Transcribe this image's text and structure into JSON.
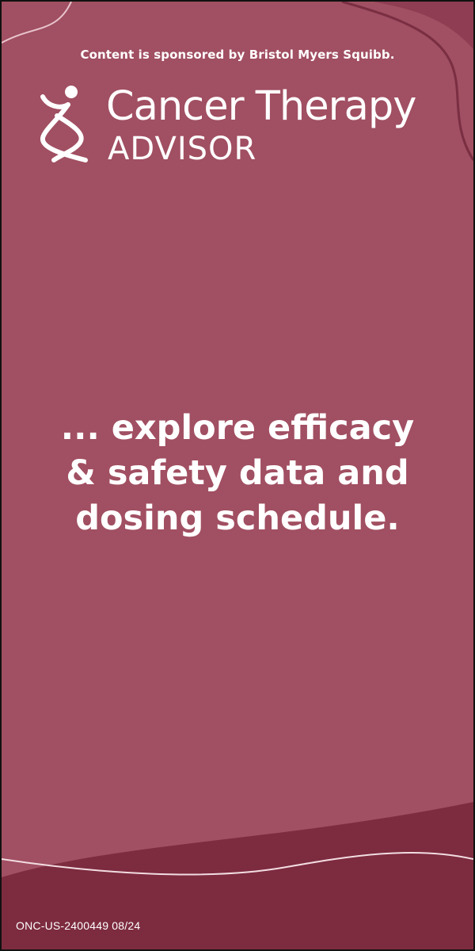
{
  "sponsor_text": "Content is sponsored by Bristol Myers Squibb.",
  "logo": {
    "line1": "Cancer Therapy",
    "line2": "ADVISOR"
  },
  "headline": {
    "lines": [
      "... explore efficacy",
      "& safety data and",
      "dosing schedule."
    ]
  },
  "footer_code": "ONC-US-2400449 08/24",
  "colors": {
    "background": "#a14f62",
    "dark_band": "#7d2b3f",
    "text": "#ffffff",
    "border": "#111111"
  }
}
